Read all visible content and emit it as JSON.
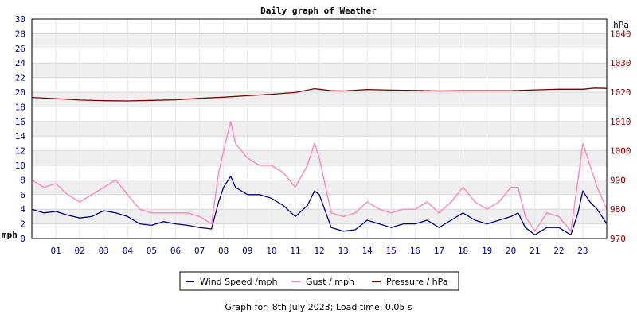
{
  "chart_data": {
    "type": "line",
    "title": "Daily graph of Weather",
    "y_left_label": "mph",
    "y_right_label": "hPa",
    "ylim_left": [
      0,
      30
    ],
    "ylim_right": [
      970,
      1045
    ],
    "left_ticks": [
      "0",
      "2",
      "4",
      "6",
      "8",
      "10",
      "12",
      "14",
      "16",
      "18",
      "20",
      "22",
      "24",
      "26",
      "28",
      "30"
    ],
    "right_ticks": [
      "970",
      "980",
      "990",
      "1000",
      "1010",
      "1020",
      "1030",
      "1040"
    ],
    "x_ticks": [
      "01",
      "02",
      "03",
      "04",
      "05",
      "06",
      "07",
      "08",
      "09",
      "10",
      "11",
      "12",
      "13",
      "14",
      "15",
      "16",
      "17",
      "18",
      "19",
      "20",
      "21",
      "22",
      "23"
    ],
    "xlim": [
      0,
      24
    ],
    "grid": true,
    "legend_position": "bottom-center",
    "colors": {
      "wind": "#000080",
      "gust": "#ff88bb",
      "pressure": "#800000",
      "left_axis": "#000080",
      "right_axis": "#800000"
    },
    "series": [
      {
        "name": "Wind Speed /mph",
        "key": "wind",
        "x": [
          0,
          0.5,
          1,
          1.5,
          2,
          2.5,
          3,
          3.5,
          4,
          4.5,
          5,
          5.5,
          6,
          6.5,
          7,
          7.5,
          7.8,
          8,
          8.3,
          8.5,
          9,
          9.5,
          10,
          10.5,
          11,
          11.5,
          11.8,
          12,
          12.5,
          13,
          13.5,
          14,
          14.5,
          15,
          15.5,
          16,
          16.5,
          17,
          17.5,
          18,
          18.5,
          19,
          19.5,
          20,
          20.3,
          20.6,
          21,
          21.5,
          22,
          22.5,
          22.8,
          23,
          23.3,
          23.6,
          24
        ],
        "values": [
          4,
          3.5,
          3.7,
          3.2,
          2.8,
          3.0,
          3.8,
          3.5,
          3.0,
          2.0,
          1.8,
          2.3,
          2.0,
          1.8,
          1.5,
          1.3,
          5,
          7,
          8.5,
          7,
          6,
          6,
          5.5,
          4.5,
          3,
          4.5,
          6.5,
          6,
          1.5,
          1,
          1.2,
          2.5,
          2,
          1.5,
          2,
          2,
          2.5,
          1.5,
          2.5,
          3.5,
          2.5,
          2,
          2.5,
          3,
          3.5,
          1.5,
          0.5,
          1.5,
          1.5,
          0.5,
          3.5,
          6.5,
          5,
          4,
          2
        ]
      },
      {
        "name": "Gust / mph",
        "key": "gust",
        "x": [
          0,
          0.5,
          1,
          1.5,
          2,
          2.5,
          3,
          3.5,
          4,
          4.5,
          5,
          5.5,
          6,
          6.5,
          7,
          7.5,
          7.8,
          8,
          8.3,
          8.5,
          9,
          9.5,
          10,
          10.5,
          11,
          11.5,
          11.8,
          12,
          12.5,
          13,
          13.5,
          14,
          14.5,
          15,
          15.5,
          16,
          16.5,
          17,
          17.5,
          18,
          18.5,
          19,
          19.5,
          20,
          20.3,
          20.6,
          21,
          21.5,
          22,
          22.5,
          22.8,
          23,
          23.3,
          23.6,
          24
        ],
        "values": [
          8,
          7,
          7.5,
          6,
          5,
          6,
          7,
          8,
          6,
          4,
          3.5,
          3.5,
          3.5,
          3.5,
          3,
          2,
          9,
          12,
          16,
          13,
          11,
          10,
          10,
          9,
          7,
          10,
          13,
          11,
          3.5,
          3,
          3.5,
          5,
          4,
          3.5,
          4,
          4,
          5,
          3.5,
          5,
          7,
          5,
          4,
          5,
          7,
          7,
          3,
          1,
          3.5,
          3,
          1,
          8,
          13,
          10,
          7,
          4
        ]
      },
      {
        "name": "Pressure / hPa",
        "key": "pressure",
        "x": [
          0,
          1,
          2,
          3,
          4,
          5,
          6,
          7,
          8,
          9,
          10,
          11,
          11.8,
          12,
          12.5,
          13,
          14,
          15,
          16,
          17,
          18,
          19,
          20,
          21,
          22,
          23,
          23.5,
          24
        ],
        "values": [
          1018.2,
          1017.8,
          1017.3,
          1017.1,
          1017.0,
          1017.2,
          1017.4,
          1017.9,
          1018.3,
          1018.8,
          1019.3,
          1019.9,
          1021.2,
          1021.0,
          1020.5,
          1020.4,
          1020.9,
          1020.7,
          1020.6,
          1020.4,
          1020.5,
          1020.5,
          1020.5,
          1020.8,
          1021.0,
          1021.0,
          1021.4,
          1021.3
        ]
      }
    ]
  },
  "footer": {
    "text": "Graph for: 8th July 2023; Load time: 0.05 s"
  }
}
